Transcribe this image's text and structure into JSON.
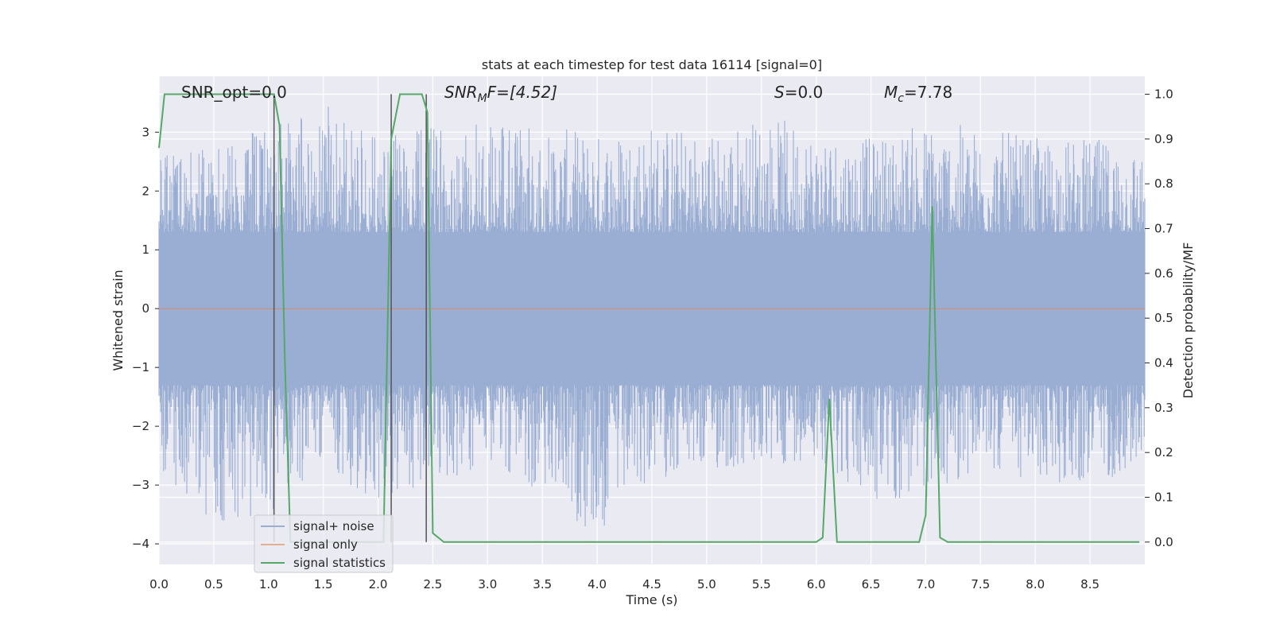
{
  "chart_data": {
    "type": "line",
    "title": "stats at each timestep for test data 16114 [signal=0]",
    "xlabel": "Time (s)",
    "ylabel": "Whitened strain",
    "y2label": "Detection probability/MF",
    "xlim": [
      0.0,
      9.0
    ],
    "ylim": [
      -4.35,
      3.95
    ],
    "y2lim": [
      -0.05,
      1.04
    ],
    "xticks": [
      "0.0",
      "0.5",
      "1.0",
      "1.5",
      "2.0",
      "2.5",
      "3.0",
      "3.5",
      "4.0",
      "4.5",
      "5.0",
      "5.5",
      "6.0",
      "6.5",
      "7.0",
      "7.5",
      "8.0",
      "8.5"
    ],
    "yticks": [
      "3",
      "2",
      "1",
      "0",
      "−1",
      "−2",
      "−3",
      "−4"
    ],
    "y2ticks": [
      "1.0",
      "0.9",
      "0.8",
      "0.7",
      "0.6",
      "0.5",
      "0.4",
      "0.3",
      "0.2",
      "0.1",
      "0.0"
    ],
    "grid": true,
    "legend_position": "lower-left",
    "annotations": {
      "snr_opt": "SNR_opt=0.0",
      "snr_mf_base": "SNR",
      "snr_mf_sub": "M",
      "snr_mf_rest": "F=[4.52]",
      "s_base": "S",
      "s_rest": "=0.0",
      "mc_base": "M",
      "mc_sub": "c",
      "mc_rest": "=7.78"
    },
    "vertical_markers_x": [
      1.05,
      2.12,
      2.44
    ],
    "series": [
      {
        "name": "signal+ noise",
        "color": "#9aaed3",
        "axis": "left",
        "envelope": {
          "x": [
            0.0,
            0.5,
            1.0,
            1.5,
            2.0,
            2.5,
            3.0,
            3.5,
            4.0,
            4.5,
            5.0,
            5.5,
            6.0,
            6.5,
            7.0,
            7.5,
            8.0,
            8.5,
            9.0
          ],
          "upper": [
            2.6,
            2.8,
            3.1,
            3.5,
            2.9,
            3.1,
            3.4,
            3.1,
            3.0,
            3.2,
            3.0,
            3.3,
            3.1,
            2.9,
            3.2,
            3.1,
            2.9,
            2.9,
            2.8
          ],
          "lower": [
            -2.7,
            -3.8,
            -3.5,
            -2.6,
            -3.4,
            -3.0,
            -2.7,
            -3.1,
            -4.0,
            -2.9,
            -2.8,
            -2.8,
            -2.5,
            -3.4,
            -3.3,
            -2.7,
            -3.0,
            -3.0,
            -2.7
          ]
        }
      },
      {
        "name": "signal only",
        "color": "#dd8452",
        "axis": "left",
        "x": [
          0.0,
          9.0
        ],
        "y": [
          0.0,
          0.0
        ]
      },
      {
        "name": "signal statistics",
        "color": "#55a868",
        "axis": "right",
        "x": [
          0.0,
          0.05,
          0.1,
          0.5,
          1.0,
          1.05,
          1.1,
          1.15,
          1.2,
          1.5,
          1.9,
          2.05,
          2.12,
          2.2,
          2.4,
          2.45,
          2.5,
          2.6,
          3.0,
          4.0,
          5.0,
          6.0,
          6.06,
          6.12,
          6.19,
          6.5,
          6.94,
          7.0,
          7.06,
          7.13,
          7.2,
          8.0,
          8.95
        ],
        "y": [
          0.88,
          1.0,
          1.0,
          1.0,
          1.0,
          1.0,
          0.93,
          0.4,
          0.0,
          0.0,
          0.0,
          0.0,
          0.9,
          1.0,
          1.0,
          0.96,
          0.02,
          0.0,
          0.0,
          0.0,
          0.0,
          0.0,
          0.01,
          0.32,
          0.0,
          0.0,
          0.0,
          0.06,
          0.75,
          0.01,
          0.0,
          0.0,
          0.0
        ]
      }
    ]
  }
}
